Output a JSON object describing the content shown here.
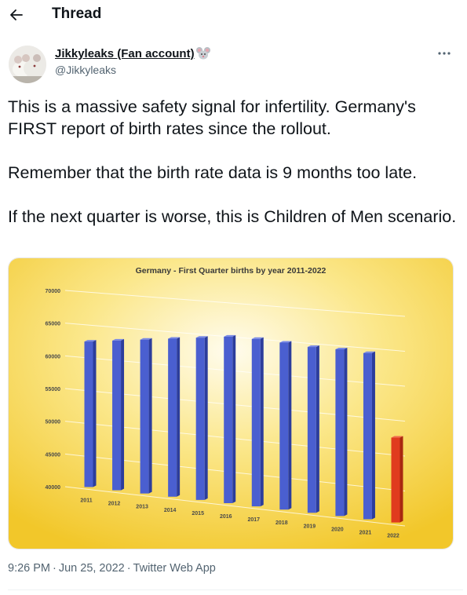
{
  "header": {
    "title": "Thread",
    "back_icon": "arrow-left-icon"
  },
  "author": {
    "name": "Jikkyleaks (Fan account)",
    "emoji": "mouse-face-icon",
    "handle": "@Jikkyleaks",
    "more_icon": "more-horizontal-icon"
  },
  "tweet": {
    "paragraphs": [
      "This is a massive safety signal for infertility. Germany's FIRST report of birth rates since the rollout.",
      "Remember that the birth rate data is 9 months too late.",
      "If the next quarter is worse, this is Children of Men scenario."
    ]
  },
  "chart_data": {
    "type": "bar",
    "title": "Germany - First Quarter births by year 2011-2022",
    "categories": [
      "2011",
      "2012",
      "2013",
      "2014",
      "2015",
      "2016",
      "2017",
      "2018",
      "2019",
      "2020",
      "2021",
      "2022"
    ],
    "values": [
      62500,
      63000,
      63500,
      64000,
      64500,
      65000,
      65000,
      64800,
      64500,
      64500,
      64300,
      52500
    ],
    "yticks": [
      40000,
      45000,
      50000,
      55000,
      60000,
      65000,
      70000
    ],
    "ylim": [
      40000,
      70000
    ],
    "grid": true,
    "colors": {
      "bar": "#4a5fd0",
      "highlight": "#e03b1e"
    },
    "highlight_index": 11
  },
  "meta": {
    "time": "9:26 PM",
    "date": "Jun 25, 2022",
    "app": "Twitter Web App",
    "separator": "·"
  }
}
